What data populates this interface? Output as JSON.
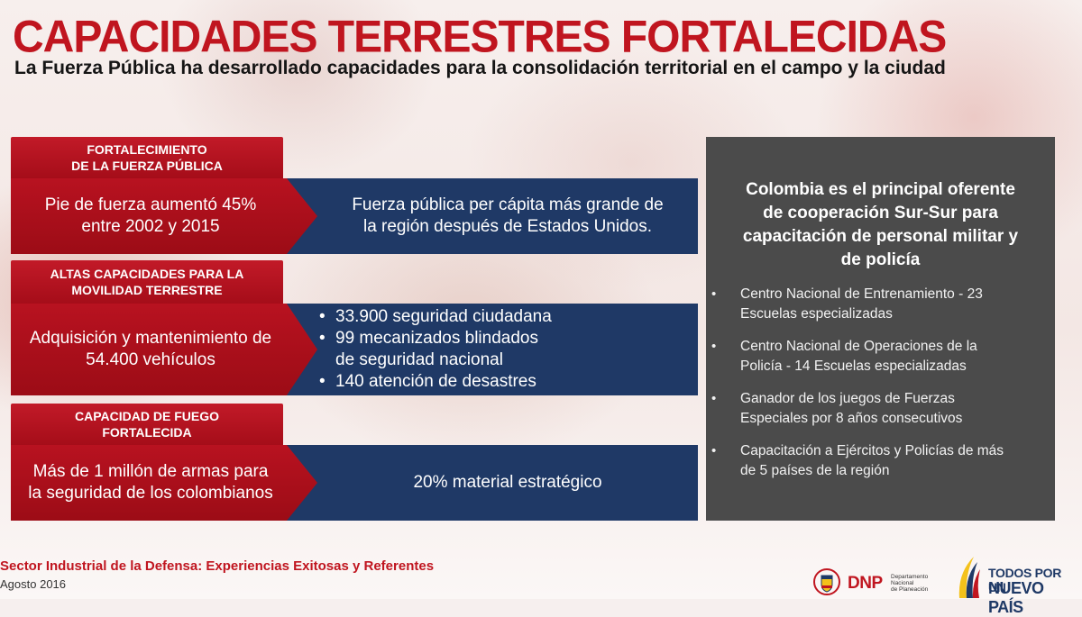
{
  "title": "CAPACIDADES TERRESTRES FORTALECIDAS",
  "subtitle": "La Fuerza Pública ha desarrollado capacidades para la consolidación territorial en el campo y la ciudad",
  "rows": [
    {
      "tab": "FORTALECIMIENTO\nDE LA FUERZA PÚBLICA",
      "left": "Pie de fuerza aumentó 45%\nentre 2002 y 2015",
      "right_text": "Fuerza pública per cápita más grande de\nla región después de Estados Unidos."
    },
    {
      "tab": "ALTAS CAPACIDADES PARA LA\nMOVILIDAD TERRESTRE",
      "left": "Adquisición y mantenimiento de\n54.400 vehículos",
      "right_items": [
        "33.900 seguridad ciudadana",
        "99 mecanizados blindados\nde seguridad nacional",
        "140 atención de desastres"
      ]
    },
    {
      "tab": "CAPACIDAD DE FUEGO\nFORTALECIDA",
      "left": "Más de 1 millón de armas para\nla seguridad de los colombianos",
      "right_text": "20% material estratégico"
    }
  ],
  "panel": {
    "heading": "Colombia es el principal oferente\nde cooperación Sur-Sur para\ncapacitación de personal militar y\nde policía",
    "items": [
      "Centro Nacional de Entrenamiento - 23\nEscuelas especializadas",
      "Centro Nacional de Operaciones de la\nPolicía - 14 Escuelas especializadas",
      "Ganador de los juegos de Fuerzas\nEspeciales por 8 años consecutivos",
      "Capacitación a Ejércitos y Policías de más\nde 5 países de la región"
    ]
  },
  "footer": {
    "line1": "Sector Industrial de la Defensa: Experiencias Exitosas y Referentes",
    "line2": "Agosto 2016"
  },
  "logos": {
    "dnp": "DNP",
    "dnp_sub": "Departamento\nNacional\nde Planeación",
    "tpn_line1": "TODOS POR UN",
    "tpn_line2": "NUEVO PAÍS"
  },
  "colors": {
    "title_red": "#c0151f",
    "tab_red": "#b81220",
    "navy": "#1f3966",
    "panel_gray": "#4b4b4b"
  }
}
